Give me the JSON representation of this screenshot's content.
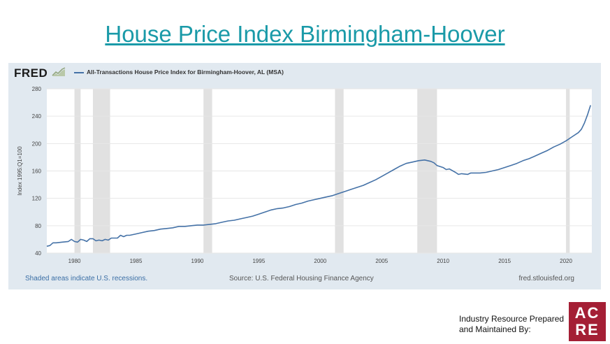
{
  "slide": {
    "title": "House Price Index Birmingham-Hoover",
    "credit_line1": "Industry Resource Prepared",
    "credit_line2": "and Maintained By:",
    "logo_row1": "AC",
    "logo_row2": "RE",
    "logo_color": "#a41f35",
    "title_color": "#1a9aa8"
  },
  "fred": {
    "logo": "FRED",
    "footer_left": "Shaded areas indicate U.S. recessions.",
    "footer_mid": "Source: U.S. Federal Housing Finance Agency",
    "footer_right": "fred.stlouisfed.org"
  },
  "chart_data": {
    "type": "line",
    "title": "All-Transactions House Price Index for Birmingham-Hoover, AL (MSA)",
    "ylabel": "Index 1995:Q1=100",
    "xlabel": "",
    "xlim": [
      1977.75,
      2022.1
    ],
    "ylim": [
      40,
      280
    ],
    "x_ticks": [
      1980,
      1985,
      1990,
      1995,
      2000,
      2005,
      2010,
      2015,
      2020
    ],
    "y_ticks": [
      40,
      80,
      120,
      160,
      200,
      240,
      280
    ],
    "grid": "horizontal",
    "line_color": "#4572a7",
    "recessions": [
      [
        1980.0,
        1980.5
      ],
      [
        1981.5,
        1982.9
      ],
      [
        1990.5,
        1991.2
      ],
      [
        2001.2,
        2001.9
      ],
      [
        2007.9,
        2009.5
      ],
      [
        2020.0,
        2020.3
      ]
    ],
    "series": [
      {
        "x": [
          1977.75,
          1978.0,
          1978.25,
          1978.5,
          1979.0,
          1979.5,
          1979.75,
          1980.0,
          1980.25,
          1980.5,
          1980.75,
          1981.0,
          1981.25,
          1981.5,
          1981.75,
          1982.0,
          1982.25,
          1982.5,
          1982.75,
          1983.0,
          1983.5,
          1983.75,
          1984.0,
          1984.25,
          1984.5,
          1985.0,
          1985.5,
          1986.0,
          1986.5,
          1987.0,
          1987.5,
          1988.0,
          1988.5,
          1989.0,
          1989.5,
          1990.0,
          1990.5,
          1991.0,
          1991.5,
          1992.0,
          1992.5,
          1993.0,
          1993.5,
          1994.0,
          1994.5,
          1995.0,
          1995.5,
          1996.0,
          1996.5,
          1997.0,
          1997.5,
          1998.0,
          1998.5,
          1999.0,
          1999.5,
          2000.0,
          2000.5,
          2001.0,
          2001.5,
          2002.0,
          2002.5,
          2003.0,
          2003.5,
          2004.0,
          2004.5,
          2005.0,
          2005.5,
          2006.0,
          2006.5,
          2007.0,
          2007.5,
          2008.0,
          2008.5,
          2009.0,
          2009.25,
          2009.5,
          2010.0,
          2010.25,
          2010.5,
          2011.0,
          2011.25,
          2011.5,
          2012.0,
          2012.25,
          2012.5,
          2013.0,
          2013.5,
          2014.0,
          2014.5,
          2015.0,
          2015.5,
          2016.0,
          2016.5,
          2017.0,
          2017.5,
          2018.0,
          2018.5,
          2019.0,
          2019.5,
          2020.0,
          2020.5,
          2021.0,
          2021.25,
          2021.5,
          2021.75,
          2022.0
        ],
        "values": [
          50,
          51,
          55,
          55,
          56,
          57,
          60,
          57,
          56,
          60,
          59,
          57,
          61,
          61,
          58,
          59,
          58,
          60,
          59,
          62,
          62,
          66,
          64,
          66,
          66,
          68,
          70,
          72,
          73,
          75,
          76,
          77,
          79,
          79,
          80,
          81,
          81,
          82,
          83,
          85,
          87,
          88,
          90,
          92,
          94,
          97,
          100,
          103,
          105,
          106,
          108,
          111,
          113,
          116,
          118,
          120,
          122,
          124,
          127,
          130,
          133,
          136,
          139,
          143,
          147,
          152,
          157,
          162,
          167,
          171,
          173,
          175,
          176,
          174,
          172,
          168,
          165,
          162,
          163,
          158,
          155,
          156,
          155,
          157,
          157,
          157,
          158,
          160,
          162,
          165,
          168,
          171,
          175,
          178,
          182,
          186,
          190,
          195,
          199,
          204,
          210,
          216,
          221,
          230,
          242,
          256
        ]
      }
    ]
  }
}
